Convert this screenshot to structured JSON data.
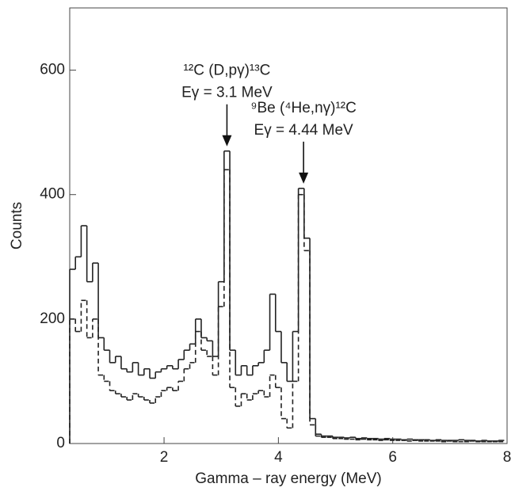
{
  "chart_data": {
    "type": "histogram",
    "xlabel": "Gamma – ray energy (MeV)",
    "ylabel": "Counts",
    "xlim": [
      0.35,
      8
    ],
    "ylim": [
      0,
      700
    ],
    "xticks": [
      2,
      4,
      6,
      8
    ],
    "yticks": [
      0,
      200,
      400,
      600
    ],
    "bins": [
      0.35,
      0.45,
      0.55,
      0.65,
      0.75,
      0.85,
      0.95,
      1.05,
      1.15,
      1.25,
      1.35,
      1.45,
      1.55,
      1.65,
      1.75,
      1.85,
      1.95,
      2.05,
      2.15,
      2.25,
      2.35,
      2.45,
      2.55,
      2.65,
      2.75,
      2.85,
      2.95,
      3.05,
      3.15,
      3.25,
      3.35,
      3.45,
      3.55,
      3.65,
      3.75,
      3.85,
      3.95,
      4.05,
      4.15,
      4.25,
      4.35,
      4.45,
      4.55,
      4.65,
      4.75,
      4.85,
      4.95,
      5.05,
      5.15,
      5.25,
      5.35,
      5.45,
      5.55,
      5.65,
      5.75,
      5.85,
      5.95,
      6.05,
      6.15,
      6.25,
      6.35,
      6.45,
      6.55,
      6.65,
      6.75,
      6.85,
      6.95,
      7.05,
      7.15,
      7.25,
      7.35,
      7.45,
      7.55,
      7.65,
      7.75,
      7.85,
      7.95
    ],
    "series": [
      {
        "color": "#222222",
        "line_style": "solid",
        "values": [
          280,
          300,
          350,
          260,
          290,
          170,
          150,
          130,
          140,
          120,
          115,
          130,
          110,
          120,
          105,
          115,
          120,
          125,
          120,
          135,
          150,
          160,
          200,
          170,
          165,
          140,
          260,
          470,
          150,
          110,
          125,
          110,
          125,
          130,
          150,
          240,
          180,
          130,
          100,
          180,
          410,
          330,
          40,
          15,
          12,
          12,
          10,
          10,
          9,
          10,
          8,
          9,
          8,
          8,
          7,
          8,
          7,
          7,
          6,
          7,
          6,
          6,
          6,
          5,
          6,
          5,
          5,
          5,
          6,
          5,
          5,
          4,
          5,
          4,
          4,
          5
        ]
      },
      {
        "color": "#222222",
        "line_style": "dashed",
        "values": [
          200,
          180,
          230,
          170,
          200,
          110,
          100,
          85,
          80,
          75,
          70,
          80,
          75,
          70,
          65,
          75,
          85,
          90,
          85,
          100,
          120,
          130,
          180,
          150,
          140,
          110,
          220,
          440,
          90,
          60,
          80,
          70,
          80,
          85,
          75,
          110,
          90,
          40,
          25,
          100,
          400,
          310,
          30,
          12,
          10,
          10,
          8,
          8,
          7,
          7,
          6,
          7,
          6,
          6,
          5,
          6,
          5,
          5,
          5,
          4,
          5,
          4,
          4,
          4,
          4,
          3,
          4,
          3,
          3,
          3,
          4,
          3,
          3,
          3,
          3,
          3
        ]
      }
    ],
    "annotations": [
      {
        "lines": [
          "¹²C (D,pγ)¹³C",
          "Eγ = 3.1 MeV"
        ],
        "x": 3.1
      },
      {
        "lines": [
          "⁹Be (⁴He,nγ)¹²C",
          "Eγ = 4.44 MeV"
        ],
        "x": 4.44
      }
    ]
  }
}
